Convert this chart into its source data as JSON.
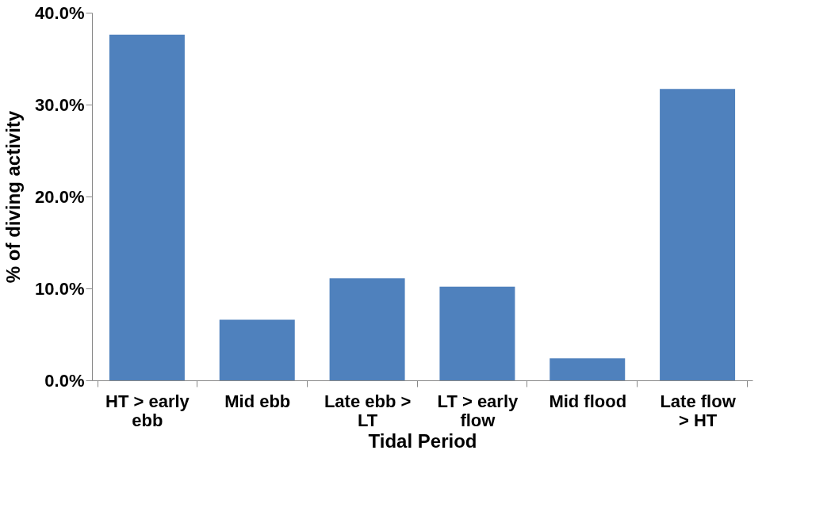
{
  "chart_data": {
    "type": "bar",
    "xlabel": "Tidal Period",
    "ylabel": "% of diving activity",
    "categories": [
      "HT > early ebb",
      "Mid ebb",
      "Late ebb > LT",
      "LT > early flow",
      "Mid flood",
      "Late flow > HT"
    ],
    "values": [
      37.6,
      6.6,
      11.1,
      10.2,
      2.4,
      31.7
    ],
    "color": "#4f81bd",
    "ylim": [
      0,
      40
    ],
    "yticks": [
      {
        "value": 0,
        "label": "0.0%"
      },
      {
        "value": 10,
        "label": "10.0%"
      },
      {
        "value": 20,
        "label": "20.0%"
      },
      {
        "value": 30,
        "label": "30.0%"
      },
      {
        "value": 40,
        "label": "40.0%"
      }
    ],
    "grid": false
  }
}
